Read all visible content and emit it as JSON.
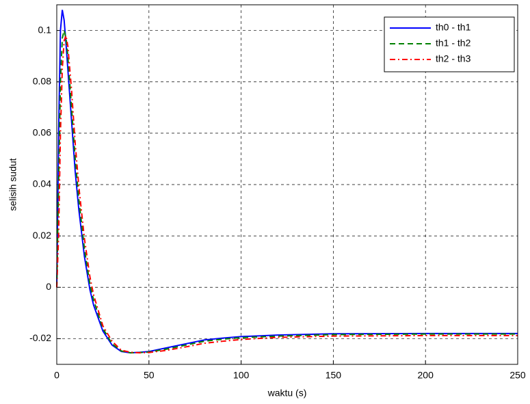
{
  "chart_data": {
    "type": "line",
    "x_label": "waktu (s)",
    "y_label": "selisih sudut",
    "x": [
      0,
      1,
      2,
      3,
      4,
      5,
      6,
      8,
      10,
      12,
      15,
      18,
      20,
      25,
      30,
      35,
      40,
      45,
      50,
      60,
      70,
      80,
      90,
      100,
      120,
      150,
      200,
      250
    ],
    "series": [
      {
        "name": "th0 - th1",
        "color": "#0000ff",
        "dash": "solid",
        "values": [
          0,
          0.06,
          0.1,
          0.108,
          0.104,
          0.095,
          0.085,
          0.065,
          0.045,
          0.03,
          0.012,
          -0.001,
          -0.007,
          -0.017,
          -0.0225,
          -0.025,
          -0.0255,
          -0.0253,
          -0.025,
          -0.0235,
          -0.022,
          -0.0205,
          -0.0198,
          -0.0192,
          -0.0186,
          -0.0181,
          -0.018,
          -0.018
        ]
      },
      {
        "name": "th1 - th2",
        "color": "#008000",
        "dash": "dashed",
        "values": [
          0,
          0.04,
          0.08,
          0.097,
          0.1,
          0.097,
          0.09,
          0.07,
          0.05,
          0.034,
          0.015,
          0.001,
          -0.005,
          -0.016,
          -0.022,
          -0.0248,
          -0.0255,
          -0.0254,
          -0.0252,
          -0.024,
          -0.0225,
          -0.021,
          -0.0202,
          -0.0196,
          -0.019,
          -0.0184,
          -0.0182,
          -0.0182
        ]
      },
      {
        "name": "th2 - th3",
        "color": "#ff0000",
        "dash": "dashdot",
        "values": [
          0,
          0.02,
          0.06,
          0.085,
          0.096,
          0.098,
          0.094,
          0.077,
          0.056,
          0.039,
          0.019,
          0.004,
          -0.003,
          -0.015,
          -0.021,
          -0.0245,
          -0.0253,
          -0.0255,
          -0.0254,
          -0.0245,
          -0.0232,
          -0.0218,
          -0.021,
          -0.0203,
          -0.0195,
          -0.019,
          -0.0188,
          -0.0188
        ]
      }
    ],
    "xlim": [
      0,
      250
    ],
    "xticks": [
      0,
      50,
      100,
      150,
      200,
      250
    ],
    "ylim": [
      -0.03,
      0.11
    ],
    "yticks": [
      -0.02,
      0,
      0.02,
      0.04,
      0.06,
      0.08,
      0.1
    ],
    "grid": true,
    "legend": "top-right"
  }
}
